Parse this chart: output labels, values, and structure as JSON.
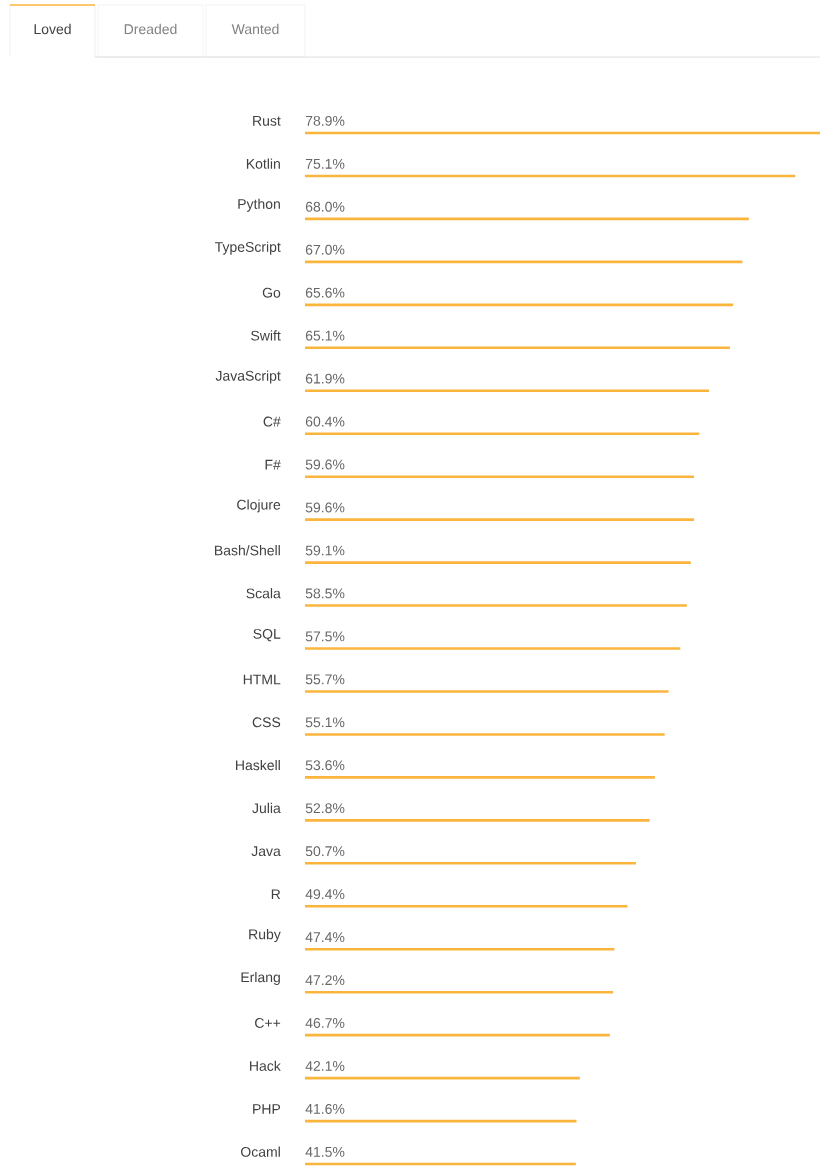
{
  "chart_data": {
    "type": "bar",
    "orientation": "horizontal",
    "annotations": [
      "Loved",
      "Dreaded",
      "Wanted"
    ],
    "categories": [
      "Rust",
      "Kotlin",
      "Python",
      "TypeScript",
      "Go",
      "Swift",
      "JavaScript",
      "C#",
      "F#",
      "Clojure",
      "Bash/Shell",
      "Scala",
      "SQL",
      "HTML",
      "CSS",
      "Haskell",
      "Julia",
      "Java",
      "R",
      "Ruby",
      "Erlang",
      "C++",
      "Hack",
      "PHP",
      "Ocaml"
    ],
    "values": [
      78.9,
      75.1,
      68.0,
      67.0,
      65.6,
      65.1,
      61.9,
      60.4,
      59.6,
      59.6,
      59.1,
      58.5,
      57.5,
      55.7,
      55.1,
      53.6,
      52.8,
      50.7,
      49.4,
      47.4,
      47.2,
      46.7,
      42.1,
      41.6,
      41.5
    ],
    "value_labels": [
      "78.9%",
      "75.1%",
      "68.0%",
      "67.0%",
      "65.6%",
      "65.1%",
      "61.9%",
      "60.4%",
      "59.6%",
      "59.6%",
      "59.1%",
      "58.5%",
      "57.5%",
      "55.7%",
      "55.1%",
      "53.6%",
      "52.8%",
      "50.7%",
      "49.4%",
      "47.4%",
      "47.2%",
      "46.7%",
      "42.1%",
      "41.6%",
      "41.5%"
    ],
    "color": "#fbb53c"
  }
}
